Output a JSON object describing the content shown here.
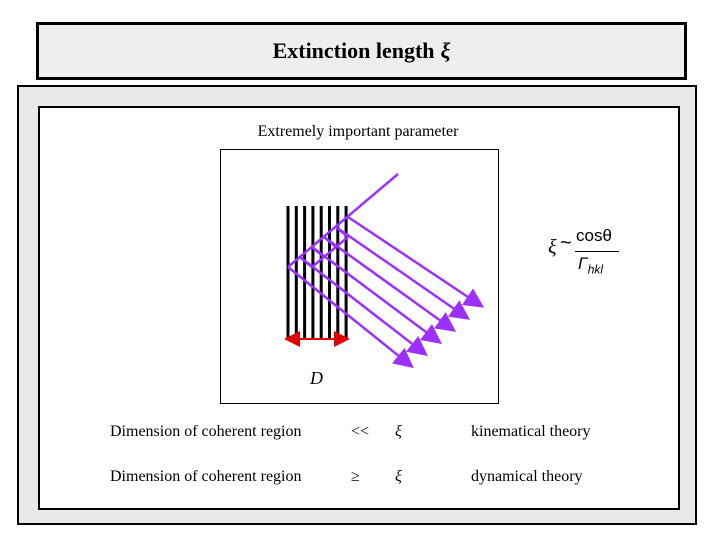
{
  "header": {
    "title": "Extinction length",
    "symbol": "ξ"
  },
  "diagram": {
    "subtitle": "Extremely important parameter",
    "dimension_label": "D",
    "colors": {
      "planes": "#000000",
      "beams": "#9b30ff",
      "dimension_arrow": "#e00000"
    }
  },
  "formula": {
    "lhs": "ξ",
    "relation": "~",
    "numerator": "cosθ",
    "denominator_base": "Γ",
    "denominator_sub": "hkl"
  },
  "comparisons": [
    {
      "label": "Dimension of coherent region",
      "operator": "<<",
      "symbol": "ξ",
      "theory": "kinematical theory"
    },
    {
      "label": "Dimension of coherent region",
      "operator": "≥",
      "symbol": "ξ",
      "theory": "dynamical theory"
    }
  ]
}
